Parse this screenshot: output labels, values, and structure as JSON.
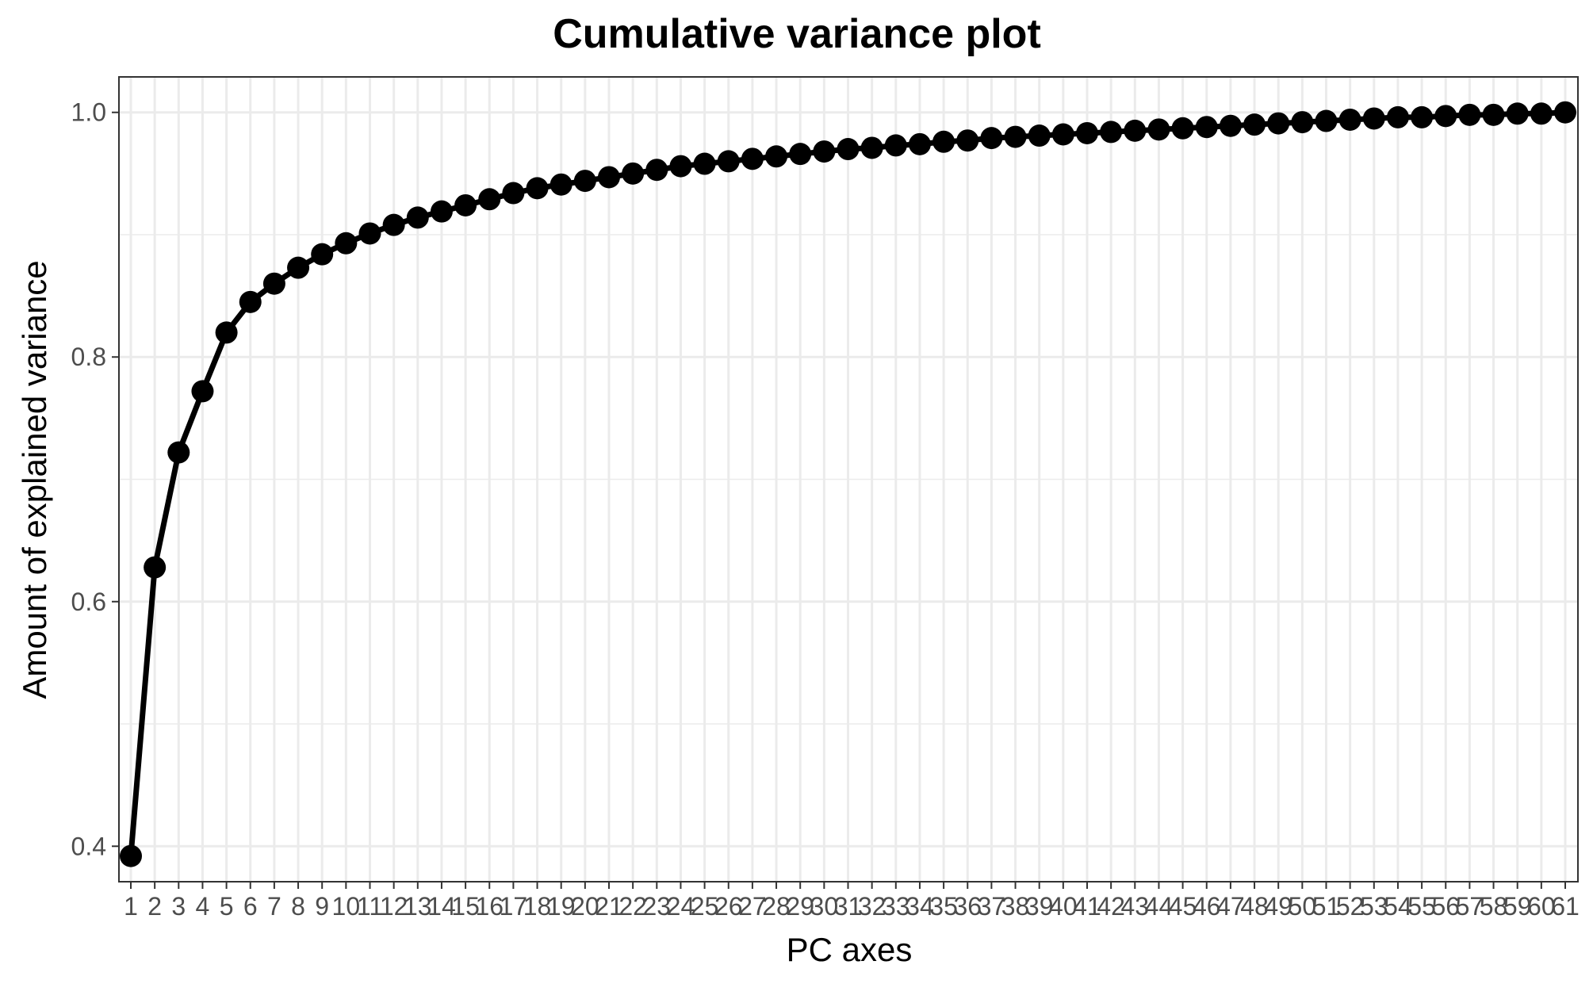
{
  "colors": {
    "background": "#ffffff",
    "grid": "#ebebeb",
    "panel_border": "#333333",
    "series": "#000000",
    "tick_text": "#4d4d4d"
  },
  "chart_data": {
    "type": "line",
    "title": "Cumulative variance plot",
    "xlabel": "PC axes",
    "ylabel": "Amount of explained variance",
    "categories": [
      "1",
      "2",
      "3",
      "4",
      "5",
      "6",
      "7",
      "8",
      "9",
      "10",
      "11",
      "12",
      "13",
      "14",
      "15",
      "16",
      "17",
      "18",
      "19",
      "20",
      "21",
      "22",
      "23",
      "24",
      "25",
      "26",
      "27",
      "28",
      "29",
      "30",
      "31",
      "32",
      "33",
      "34",
      "35",
      "36",
      "37",
      "38",
      "39",
      "40",
      "41",
      "42",
      "43",
      "44",
      "45",
      "46",
      "47",
      "48",
      "49",
      "50",
      "51",
      "52",
      "53",
      "54",
      "55",
      "56",
      "57",
      "58",
      "59",
      "60",
      "61"
    ],
    "series": [
      {
        "values": [
          0.392,
          0.628,
          0.722,
          0.772,
          0.82,
          0.845,
          0.86,
          0.873,
          0.884,
          0.893,
          0.901,
          0.908,
          0.914,
          0.919,
          0.924,
          0.929,
          0.934,
          0.938,
          0.941,
          0.944,
          0.947,
          0.95,
          0.953,
          0.956,
          0.958,
          0.96,
          0.962,
          0.964,
          0.966,
          0.968,
          0.97,
          0.971,
          0.973,
          0.974,
          0.976,
          0.977,
          0.979,
          0.98,
          0.981,
          0.982,
          0.983,
          0.984,
          0.985,
          0.986,
          0.987,
          0.988,
          0.989,
          0.99,
          0.991,
          0.992,
          0.993,
          0.994,
          0.995,
          0.996,
          0.996,
          0.997,
          0.998,
          0.998,
          0.999,
          0.999,
          1.0
        ],
        "show_markers": true
      }
    ],
    "y_ticks": [
      "0.4",
      "0.6",
      "0.8",
      "1.0"
    ],
    "ylim": [
      0.371,
      1.029
    ],
    "grid": true,
    "legend": "none"
  }
}
